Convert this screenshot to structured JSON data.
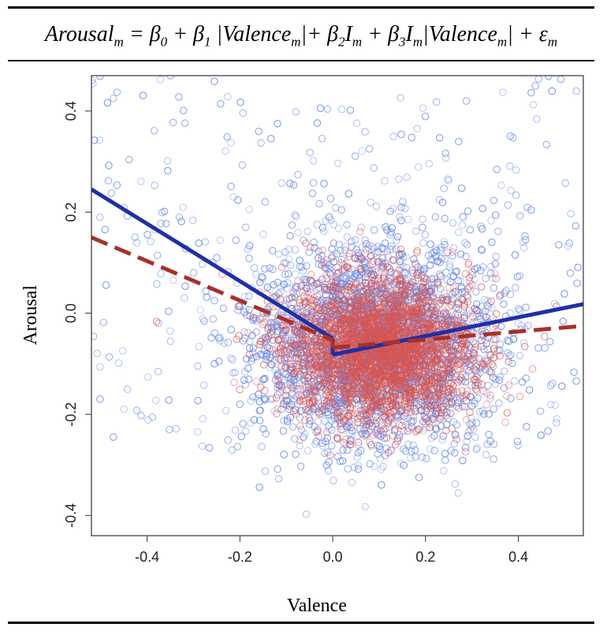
{
  "equation": {
    "t1": "Arousal",
    "s1": "m",
    "t2": " = β",
    "s2": "0",
    "t3": " + β",
    "s3": "1",
    "t4": " |Valence",
    "s4": "m",
    "t5": "|+ β",
    "s5": "2",
    "t6": "I",
    "s6": "m",
    "t7": " + β",
    "s7": "3",
    "t8": "I",
    "s8": "m",
    "t9": "|Valence",
    "s9": "m",
    "t10": "| + ε",
    "s10": "m"
  },
  "chart_data": {
    "type": "scatter",
    "title": "",
    "xlabel": "Valence",
    "ylabel": "Arousal",
    "xlim": [
      -0.52,
      0.54
    ],
    "ylim": [
      -0.44,
      0.47
    ],
    "xticks": [
      -0.4,
      -0.2,
      0.0,
      0.2,
      0.4
    ],
    "xtick_labels": [
      "-0.4",
      "-0.2",
      "0.0",
      "0.2",
      "0.4"
    ],
    "yticks": [
      -0.4,
      -0.2,
      0.0,
      0.2,
      0.4
    ],
    "ytick_labels": [
      "-0.4",
      "-0.2",
      "0.0",
      "0.2",
      "0.4"
    ],
    "point_distribution": {
      "center": [
        0.09,
        -0.06
      ],
      "spread": [
        0.13,
        0.1
      ],
      "blue_points": 4200,
      "red_points": 2800,
      "red_center": [
        0.1,
        -0.07
      ],
      "red_spread": [
        0.1,
        0.07
      ]
    },
    "series": [
      {
        "name": "blue-fit",
        "color": "#1f2fa6",
        "style": "solid",
        "segments": [
          [
            [
              -0.52,
              0.245
            ],
            [
              0.0,
              -0.05
            ]
          ],
          [
            [
              0.0,
              -0.082
            ],
            [
              0.54,
              0.018
            ]
          ]
        ]
      },
      {
        "name": "red-fit",
        "color": "#a8302a",
        "style": "dashed",
        "segments": [
          [
            [
              -0.52,
              0.15
            ],
            [
              0.0,
              -0.053
            ]
          ],
          [
            [
              0.0,
              -0.068
            ],
            [
              0.54,
              -0.025
            ]
          ]
        ]
      }
    ],
    "colors": {
      "blue_points": "#6f8fe8",
      "red_points": "#d9534f"
    }
  }
}
